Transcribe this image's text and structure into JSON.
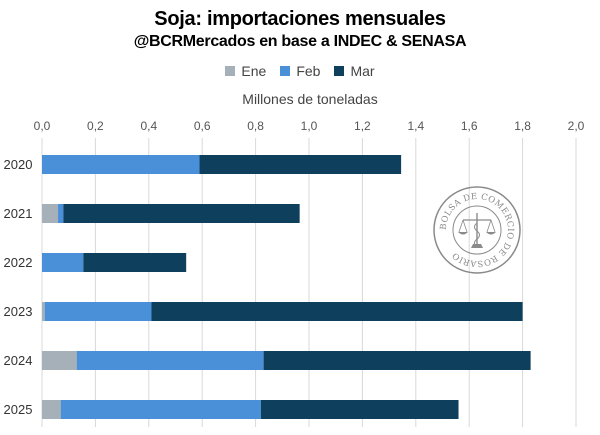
{
  "header": {
    "title": "Soja: importaciones mensuales",
    "subtitle": "@BCRMercados en base a INDEC & SENASA"
  },
  "watermark": {
    "text": "BOLSA DE COMERCIO DE ROSARIO",
    "color": "#8a8a8a"
  },
  "chart_data": {
    "type": "bar",
    "orientation": "horizontal",
    "stacked": true,
    "title": "Soja: importaciones mensuales",
    "subtitle": "@BCRMercados en base a INDEC & SENASA",
    "xlabel": "Millones de toneladas",
    "ylabel": "",
    "xlim": [
      0,
      2.0
    ],
    "x_ticks": [
      0,
      0.2,
      0.4,
      0.6,
      0.8,
      1.0,
      1.2,
      1.4,
      1.6,
      1.8,
      2.0
    ],
    "x_tick_labels": [
      "0,0",
      "0,2",
      "0,4",
      "0,6",
      "0,8",
      "1,0",
      "1,2",
      "1,4",
      "1,6",
      "1,8",
      "2,0"
    ],
    "categories": [
      "2020",
      "2021",
      "2022",
      "2023",
      "2024",
      "2025"
    ],
    "legend_position": "top-center",
    "grid": true,
    "series": [
      {
        "name": "Ene",
        "color": "#a5b0b9",
        "values": [
          0.0,
          0.06,
          0.0,
          0.01,
          0.13,
          0.07
        ]
      },
      {
        "name": "Feb",
        "color": "#4a90d9",
        "values": [
          0.59,
          0.02,
          0.155,
          0.4,
          0.7,
          0.75
        ]
      },
      {
        "name": "Mar",
        "color": "#0e3f5c",
        "values": [
          0.755,
          0.885,
          0.385,
          1.39,
          1.0,
          0.74
        ]
      }
    ]
  }
}
